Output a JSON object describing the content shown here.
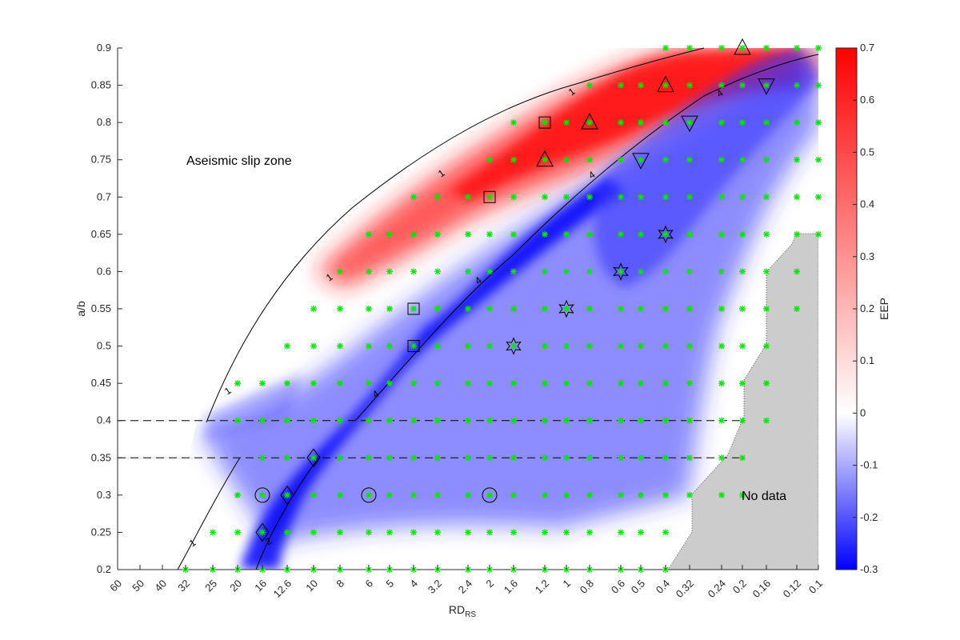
{
  "chart_data": {
    "type": "heatmap",
    "xlabel": "RD",
    "xlabel_sub": "RS",
    "ylabel": "a/b",
    "x_tick_labels": [
      "60",
      "50",
      "40",
      "32",
      "25",
      "20",
      "16",
      "12.6",
      "10",
      "8",
      "6",
      "5",
      "4",
      "3.2",
      "2.4",
      "2",
      "1.6",
      "1.2",
      "1",
      "0.8",
      "0.6",
      "0.5",
      "0.4",
      "0.32",
      "0.24",
      "0.2",
      "0.16",
      "0.12",
      "0.1"
    ],
    "y_ticks": [
      0.2,
      0.25,
      0.3,
      0.35,
      0.4,
      0.45,
      0.5,
      0.55,
      0.6,
      0.65,
      0.7,
      0.75,
      0.8,
      0.85,
      0.9
    ],
    "y_tick_labels": [
      "0.2",
      "0.25",
      "0.3",
      "0.35",
      "0.4",
      "0.45",
      "0.5",
      "0.55",
      "0.6",
      "0.65",
      "0.7",
      "0.75",
      "0.8",
      "0.85",
      "0.9"
    ],
    "ylim": [
      0.2,
      0.9
    ],
    "colorbar": {
      "label": "EEP",
      "range": [
        -0.3,
        0.7
      ],
      "ticks": [
        -0.3,
        -0.2,
        -0.1,
        0,
        0.1,
        0.2,
        0.3,
        0.4,
        0.5,
        0.6,
        0.7
      ],
      "tick_labels": [
        "-0.3",
        "-0.2",
        "-0.1",
        "0",
        "0.1",
        "0.2",
        "0.3",
        "0.4",
        "0.5",
        "0.6",
        "0.7"
      ],
      "colors": [
        "#0000ff",
        "#ffffff",
        "#ff0000"
      ]
    },
    "annotations": {
      "aseismic": "Aseismic slip zone",
      "nodata": "No data"
    },
    "contour_levels": [
      {
        "label": "1"
      },
      {
        "label": "2"
      },
      {
        "label": "4"
      }
    ],
    "dashed_levels": [
      0.4,
      0.35
    ],
    "colors": {
      "grid_marker": "#00e600",
      "no_data_fill": "#cccccc",
      "contour": "#000000"
    },
    "x_index_note": "x positions given as index into x_tick_labels",
    "sample_rows": [
      {
        "a_b": 0.9,
        "x_idx_range": [
          22,
          28
        ]
      },
      {
        "a_b": 0.85,
        "x_idx_range": [
          19,
          28
        ]
      },
      {
        "a_b": 0.8,
        "x_idx_range": [
          16,
          28
        ]
      },
      {
        "a_b": 0.75,
        "x_idx_range": [
          15,
          28
        ]
      },
      {
        "a_b": 0.7,
        "x_idx_range": [
          12,
          28
        ]
      },
      {
        "a_b": 0.65,
        "x_idx_range": [
          10,
          28
        ]
      },
      {
        "a_b": 0.6,
        "x_idx_range": [
          9,
          27
        ]
      },
      {
        "a_b": 0.55,
        "x_idx_range": [
          8,
          27
        ]
      },
      {
        "a_b": 0.5,
        "x_idx_range": [
          7,
          26
        ]
      },
      {
        "a_b": 0.45,
        "x_idx_range": [
          5,
          26
        ]
      },
      {
        "a_b": 0.4,
        "x_idx_range": [
          5,
          26
        ]
      },
      {
        "a_b": 0.35,
        "x_idx_range": [
          6,
          25
        ]
      },
      {
        "a_b": 0.3,
        "x_idx_range": [
          5,
          25
        ]
      },
      {
        "a_b": 0.25,
        "x_idx_range": [
          4,
          22
        ]
      },
      {
        "a_b": 0.2,
        "x_idx_range": [
          3,
          22
        ]
      }
    ],
    "special_markers": [
      {
        "shape": "triangle-up",
        "x_idx": 25,
        "a_b": 0.9
      },
      {
        "shape": "triangle-up",
        "x_idx": 22,
        "a_b": 0.85
      },
      {
        "shape": "triangle-down",
        "x_idx": 26,
        "a_b": 0.85
      },
      {
        "shape": "triangle-up",
        "x_idx": 19,
        "a_b": 0.8
      },
      {
        "shape": "triangle-down",
        "x_idx": 23,
        "a_b": 0.8
      },
      {
        "shape": "triangle-up",
        "x_idx": 17,
        "a_b": 0.75
      },
      {
        "shape": "triangle-down",
        "x_idx": 21,
        "a_b": 0.75
      },
      {
        "shape": "square",
        "x_idx": 17,
        "a_b": 0.8
      },
      {
        "shape": "square",
        "x_idx": 15,
        "a_b": 0.7
      },
      {
        "shape": "square",
        "x_idx": 12,
        "a_b": 0.55
      },
      {
        "shape": "square",
        "x_idx": 12,
        "a_b": 0.5
      },
      {
        "shape": "hexagram",
        "x_idx": 22,
        "a_b": 0.65
      },
      {
        "shape": "hexagram",
        "x_idx": 20,
        "a_b": 0.6
      },
      {
        "shape": "hexagram",
        "x_idx": 18,
        "a_b": 0.55
      },
      {
        "shape": "hexagram",
        "x_idx": 16,
        "a_b": 0.5
      },
      {
        "shape": "diamond",
        "x_idx": 8,
        "a_b": 0.35
      },
      {
        "shape": "diamond",
        "x_idx": 7,
        "a_b": 0.3
      },
      {
        "shape": "diamond",
        "x_idx": 6,
        "a_b": 0.25
      },
      {
        "shape": "circle",
        "x_idx": 6,
        "a_b": 0.3
      },
      {
        "shape": "circle",
        "x_idx": 10,
        "a_b": 0.3
      },
      {
        "shape": "circle",
        "x_idx": 15,
        "a_b": 0.3
      }
    ]
  }
}
